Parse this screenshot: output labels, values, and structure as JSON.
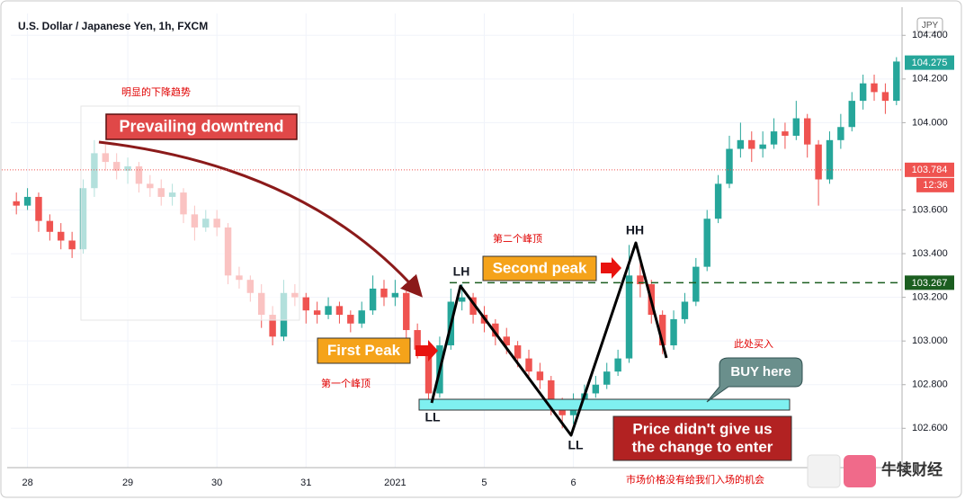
{
  "chart_data": {
    "type": "candlestick",
    "title": "U.S. Dollar / Japanese Yen, 1h, FXCM",
    "currency": "JPY",
    "up_color": "#26a69a",
    "down_color": "#ef5350",
    "ylim": [
      102.42,
      104.5
    ],
    "yticks": [
      {
        "value": 102.6,
        "label": "102.600"
      },
      {
        "value": 102.8,
        "label": "102.800"
      },
      {
        "value": 103.0,
        "label": "103.000"
      },
      {
        "value": 103.2,
        "label": "103.200"
      },
      {
        "value": 103.4,
        "label": "103.400"
      },
      {
        "value": 103.6,
        "label": "103.600"
      },
      {
        "value": 104.0,
        "label": "104.000"
      },
      {
        "value": 104.2,
        "label": "104.200"
      },
      {
        "value": 104.4,
        "label": "104.400"
      }
    ],
    "categories": [
      null,
      "28",
      null,
      null,
      null,
      null,
      null,
      null,
      null,
      null,
      "29",
      null,
      null,
      null,
      null,
      null,
      null,
      null,
      "30",
      null,
      null,
      null,
      null,
      null,
      null,
      null,
      "31",
      null,
      null,
      null,
      null,
      null,
      null,
      null,
      "2021",
      null,
      null,
      null,
      null,
      null,
      null,
      null,
      "5",
      null,
      null,
      null,
      null,
      null,
      null,
      null,
      "6",
      null,
      null,
      null,
      null,
      null,
      null,
      null,
      null,
      null,
      null,
      null,
      null,
      null,
      null,
      null,
      null,
      null,
      null,
      null,
      null,
      null,
      null,
      null,
      null,
      null,
      null,
      null,
      null,
      null
    ],
    "ohlc": [
      [
        103.64,
        103.68,
        103.58,
        103.62
      ],
      [
        103.62,
        103.7,
        103.6,
        103.66
      ],
      [
        103.66,
        103.68,
        103.5,
        103.55
      ],
      [
        103.55,
        103.58,
        103.46,
        103.5
      ],
      [
        103.5,
        103.54,
        103.42,
        103.46
      ],
      [
        103.46,
        103.5,
        103.38,
        103.42
      ],
      [
        103.42,
        103.74,
        103.4,
        103.7
      ],
      [
        103.7,
        103.92,
        103.66,
        103.86
      ],
      [
        103.86,
        103.9,
        103.78,
        103.82
      ],
      [
        103.82,
        103.86,
        103.74,
        103.78
      ],
      [
        103.78,
        103.84,
        103.72,
        103.8
      ],
      [
        103.8,
        103.82,
        103.68,
        103.72
      ],
      [
        103.72,
        103.76,
        103.66,
        103.7
      ],
      [
        103.7,
        103.74,
        103.62,
        103.66
      ],
      [
        103.66,
        103.72,
        103.62,
        103.68
      ],
      [
        103.68,
        103.7,
        103.54,
        103.58
      ],
      [
        103.58,
        103.62,
        103.46,
        103.52
      ],
      [
        103.52,
        103.6,
        103.5,
        103.56
      ],
      [
        103.56,
        103.6,
        103.48,
        103.52
      ],
      [
        103.52,
        103.54,
        103.26,
        103.3
      ],
      [
        103.3,
        103.34,
        103.24,
        103.28
      ],
      [
        103.28,
        103.3,
        103.18,
        103.22
      ],
      [
        103.22,
        103.26,
        103.06,
        103.12
      ],
      [
        103.12,
        103.16,
        102.98,
        103.02
      ],
      [
        103.02,
        103.28,
        103.0,
        103.22
      ],
      [
        103.22,
        103.26,
        103.16,
        103.2
      ],
      [
        103.2,
        103.22,
        103.08,
        103.14
      ],
      [
        103.14,
        103.18,
        103.08,
        103.12
      ],
      [
        103.12,
        103.2,
        103.1,
        103.16
      ],
      [
        103.16,
        103.18,
        103.08,
        103.12
      ],
      [
        103.12,
        103.14,
        103.04,
        103.08
      ],
      [
        103.08,
        103.18,
        103.06,
        103.14
      ],
      [
        103.14,
        103.3,
        103.12,
        103.24
      ],
      [
        103.24,
        103.28,
        103.16,
        103.2
      ],
      [
        103.2,
        103.28,
        103.16,
        103.22
      ],
      [
        103.22,
        103.24,
        103.0,
        103.05
      ],
      [
        103.05,
        103.08,
        102.92,
        102.96
      ],
      [
        102.96,
        102.98,
        102.72,
        102.76
      ],
      [
        102.76,
        103.02,
        102.74,
        102.98
      ],
      [
        102.98,
        103.24,
        102.96,
        103.18
      ],
      [
        103.18,
        103.26,
        103.14,
        103.2
      ],
      [
        103.2,
        103.22,
        103.08,
        103.12
      ],
      [
        103.12,
        103.16,
        103.04,
        103.08
      ],
      [
        103.08,
        103.1,
        102.98,
        103.02
      ],
      [
        103.02,
        103.06,
        102.94,
        102.98
      ],
      [
        102.98,
        103.0,
        102.88,
        102.92
      ],
      [
        102.92,
        102.96,
        102.82,
        102.86
      ],
      [
        102.86,
        102.9,
        102.78,
        102.82
      ],
      [
        102.82,
        102.84,
        102.66,
        102.72
      ],
      [
        102.72,
        102.74,
        102.6,
        102.66
      ],
      [
        102.66,
        102.76,
        102.62,
        102.72
      ],
      [
        102.72,
        102.8,
        102.7,
        102.76
      ],
      [
        102.76,
        102.84,
        102.74,
        102.8
      ],
      [
        102.8,
        102.9,
        102.78,
        102.86
      ],
      [
        102.86,
        102.96,
        102.84,
        102.92
      ],
      [
        102.92,
        103.44,
        102.9,
        103.3
      ],
      [
        103.3,
        103.36,
        103.2,
        103.26
      ],
      [
        103.26,
        103.28,
        103.08,
        103.12
      ],
      [
        103.12,
        103.14,
        102.94,
        102.98
      ],
      [
        102.98,
        103.14,
        102.96,
        103.1
      ],
      [
        103.1,
        103.22,
        103.08,
        103.18
      ],
      [
        103.18,
        103.38,
        103.16,
        103.34
      ],
      [
        103.34,
        103.6,
        103.32,
        103.56
      ],
      [
        103.56,
        103.76,
        103.54,
        103.72
      ],
      [
        103.72,
        103.94,
        103.7,
        103.88
      ],
      [
        103.88,
        104.0,
        103.84,
        103.92
      ],
      [
        103.92,
        103.96,
        103.82,
        103.88
      ],
      [
        103.88,
        103.96,
        103.84,
        103.9
      ],
      [
        103.9,
        104.02,
        103.88,
        103.96
      ],
      [
        103.96,
        104.0,
        103.88,
        103.94
      ],
      [
        103.94,
        104.1,
        103.92,
        104.02
      ],
      [
        104.02,
        104.04,
        103.84,
        103.9
      ],
      [
        103.9,
        103.92,
        103.62,
        103.74
      ],
      [
        103.74,
        103.96,
        103.72,
        103.92
      ],
      [
        103.92,
        104.04,
        103.88,
        103.98
      ],
      [
        103.98,
        104.14,
        103.96,
        104.1
      ],
      [
        104.1,
        104.22,
        104.06,
        104.18
      ],
      [
        104.18,
        104.22,
        104.1,
        104.14
      ],
      [
        104.14,
        104.18,
        104.04,
        104.1
      ],
      [
        104.1,
        104.3,
        104.08,
        104.28
      ]
    ],
    "price_labels": [
      {
        "value": 104.275,
        "label": "104.275",
        "color": "#26a69a",
        "line": "none"
      },
      {
        "value": 103.784,
        "label": "103.784",
        "color": "#ef5350",
        "line": "dotted"
      },
      {
        "value": 103.267,
        "label": "103.267",
        "color": "#1b5e20",
        "line": "dashed"
      }
    ],
    "countdown": "12:36",
    "annotations": {
      "downtrend_cn": "明显的下降趋势",
      "downtrend": "Prevailing downtrend",
      "first_peak": "First Peak",
      "first_peak_cn": "第一个峰顶",
      "second_peak": "Second peak",
      "second_peak_cn": "第二个峰顶",
      "lh": "LH",
      "hh": "HH",
      "ll_1": "LL",
      "ll_2": "LL",
      "buy": "BUY here",
      "buy_cn": "此处买入",
      "missed": [
        "Price didn't give us",
        "the change to enter"
      ],
      "missed_cn": "市场价格没有给我们入场的机会",
      "watermark": "牛犊财经"
    }
  }
}
